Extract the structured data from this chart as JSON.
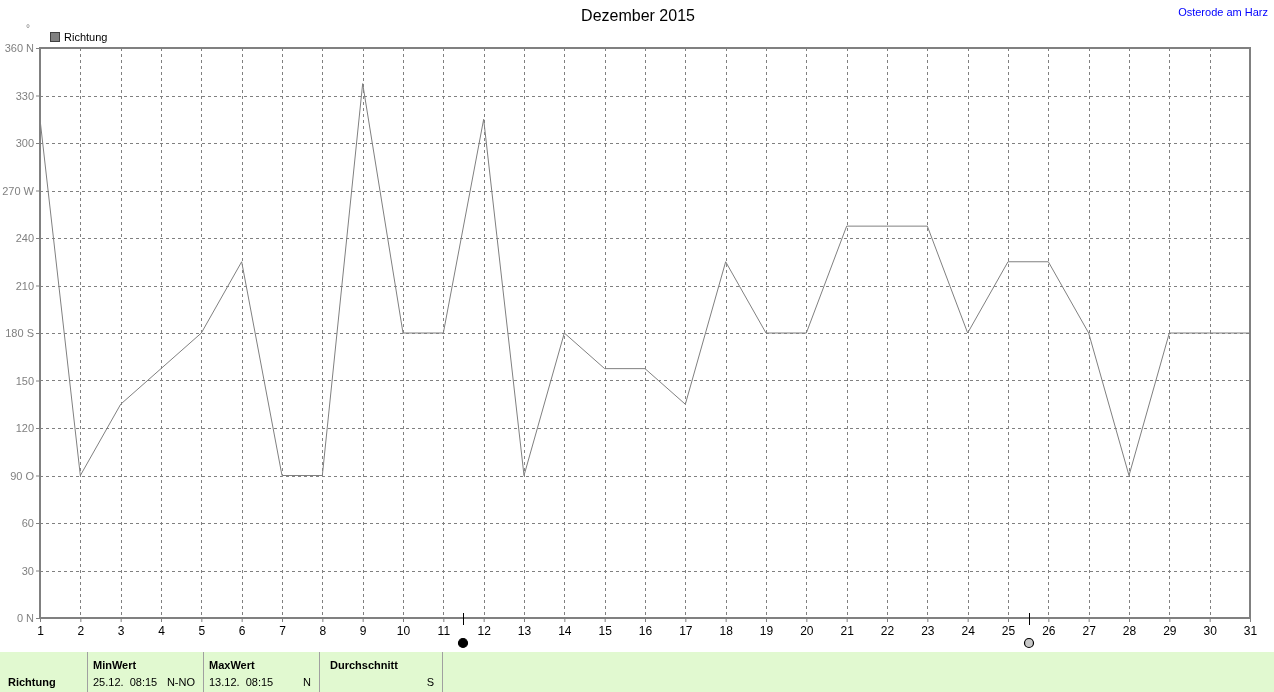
{
  "chart_data": {
    "type": "line",
    "title": "Dezember 2015",
    "ylabel": "°",
    "x": [
      1,
      2,
      3,
      4,
      5,
      6,
      7,
      8,
      9,
      10,
      11,
      12,
      13,
      14,
      15,
      16,
      17,
      18,
      19,
      20,
      21,
      22,
      23,
      24,
      25,
      26,
      27,
      28,
      29,
      30,
      31
    ],
    "series": [
      {
        "name": "Richtung",
        "color": "#808080",
        "values": [
          315,
          90,
          135,
          157.5,
          180,
          225,
          90,
          90,
          337.5,
          180,
          180,
          315,
          90,
          180,
          157.5,
          157.5,
          135,
          225,
          180,
          180,
          247.5,
          247.5,
          247.5,
          180,
          225,
          225,
          180,
          90,
          180,
          180,
          180
        ]
      }
    ],
    "xlim": [
      1,
      31
    ],
    "xticks": [
      1,
      2,
      3,
      4,
      5,
      6,
      7,
      8,
      9,
      10,
      11,
      12,
      13,
      14,
      15,
      16,
      17,
      18,
      19,
      20,
      21,
      22,
      23,
      24,
      25,
      26,
      27,
      28,
      29,
      30,
      31
    ],
    "ylim": [
      0,
      360
    ],
    "yticks": [
      {
        "value": 0,
        "label": "0 N"
      },
      30,
      60,
      {
        "value": 90,
        "label": "90 O"
      },
      120,
      150,
      {
        "value": 180,
        "label": "180 S"
      },
      210,
      240,
      {
        "value": 270,
        "label": "270 W"
      },
      300,
      330,
      {
        "value": 360,
        "label": "360 N"
      }
    ],
    "grid": true,
    "legend": "top left",
    "annotations": [
      "Osterode am Harz",
      "Richtung",
      "MinWert",
      "25.12.  08:15",
      "N-NO",
      "MaxWert",
      "13.12.  08:15",
      "N",
      "Durchschnitt",
      "S"
    ]
  }
}
